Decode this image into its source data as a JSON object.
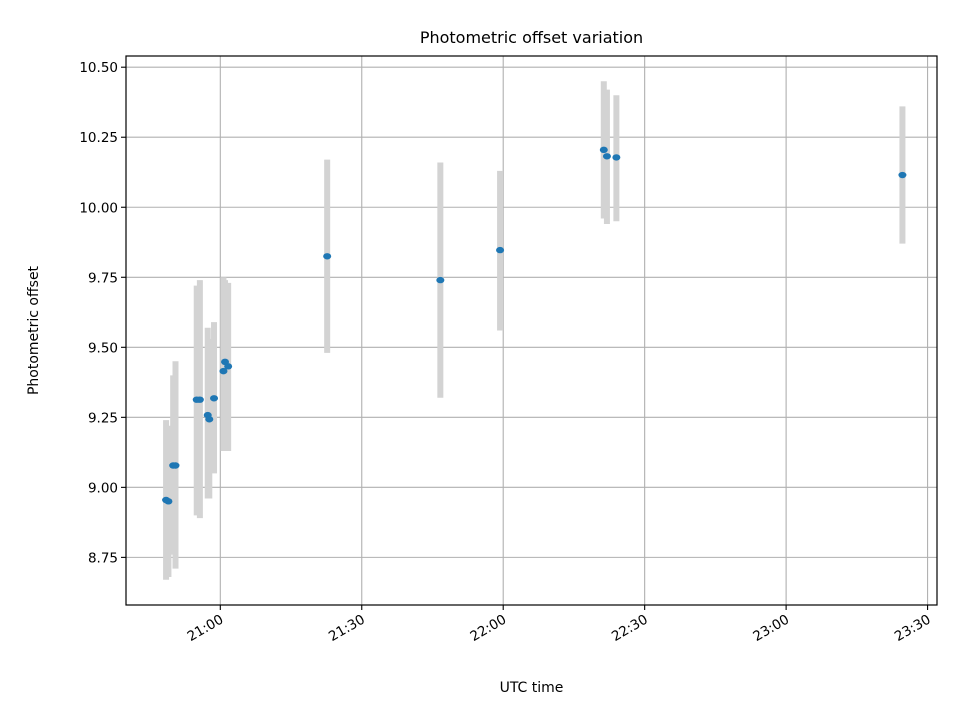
{
  "chart_data": {
    "type": "scatter",
    "title": "Photometric offset variation",
    "xlabel": "UTC time",
    "ylabel": "Photometric offset",
    "x_axis_type": "time",
    "xlim": [
      "20:40",
      "23:32"
    ],
    "ylim": [
      8.58,
      10.54
    ],
    "grid": true,
    "x_ticks": [
      "21:00",
      "21:30",
      "22:00",
      "22:30",
      "23:00",
      "23:30"
    ],
    "y_ticks": [
      "8.75",
      "9.00",
      "9.25",
      "9.50",
      "9.75",
      "10.00",
      "10.25",
      "10.50"
    ],
    "error_bar_color": "#d3d3d3",
    "point_color": "#1f77b4",
    "points": [
      {
        "x": "20:48:30",
        "y": 8.955,
        "yerr_low": 8.67,
        "yerr_high": 9.24
      },
      {
        "x": "20:49:00",
        "y": 8.95,
        "yerr_low": 8.68,
        "yerr_high": 9.22
      },
      {
        "x": "20:50:00",
        "y": 9.078,
        "yerr_low": 8.76,
        "yerr_high": 9.4
      },
      {
        "x": "20:50:30",
        "y": 9.078,
        "yerr_low": 8.71,
        "yerr_high": 9.45
      },
      {
        "x": "20:55:00",
        "y": 9.313,
        "yerr_low": 8.9,
        "yerr_high": 9.72
      },
      {
        "x": "20:55:40",
        "y": 9.313,
        "yerr_low": 8.89,
        "yerr_high": 9.74
      },
      {
        "x": "20:57:20",
        "y": 9.258,
        "yerr_low": 8.96,
        "yerr_high": 9.57
      },
      {
        "x": "20:57:40",
        "y": 9.243,
        "yerr_low": 8.96,
        "yerr_high": 9.53
      },
      {
        "x": "20:58:40",
        "y": 9.318,
        "yerr_low": 9.05,
        "yerr_high": 9.59
      },
      {
        "x": "21:00:40",
        "y": 9.415,
        "yerr_low": 9.13,
        "yerr_high": 9.75
      },
      {
        "x": "21:01:00",
        "y": 9.448,
        "yerr_low": 9.16,
        "yerr_high": 9.74
      },
      {
        "x": "21:01:40",
        "y": 9.432,
        "yerr_low": 9.13,
        "yerr_high": 9.73
      },
      {
        "x": "21:22:40",
        "y": 9.825,
        "yerr_low": 9.48,
        "yerr_high": 10.17
      },
      {
        "x": "21:46:40",
        "y": 9.74,
        "yerr_low": 9.32,
        "yerr_high": 10.16
      },
      {
        "x": "21:59:20",
        "y": 9.847,
        "yerr_low": 9.56,
        "yerr_high": 10.13
      },
      {
        "x": "22:21:20",
        "y": 10.205,
        "yerr_low": 9.96,
        "yerr_high": 10.45
      },
      {
        "x": "22:22:00",
        "y": 10.182,
        "yerr_low": 9.94,
        "yerr_high": 10.42
      },
      {
        "x": "22:24:00",
        "y": 10.178,
        "yerr_low": 9.95,
        "yerr_high": 10.4
      },
      {
        "x": "23:24:40",
        "y": 10.115,
        "yerr_low": 9.87,
        "yerr_high": 10.36
      }
    ]
  }
}
